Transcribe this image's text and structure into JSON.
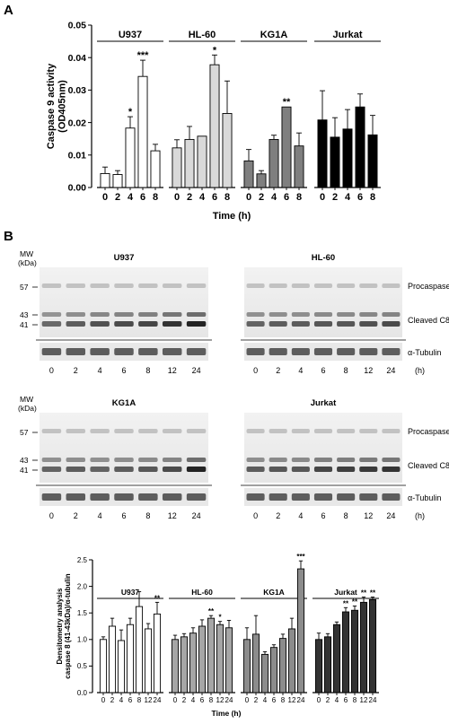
{
  "panel_letters": {
    "a": "A",
    "b": "B"
  },
  "blot": {
    "mw_label": "MW",
    "kda_label": "(kDa)",
    "markers": [
      "57",
      "43",
      "41"
    ],
    "band_labels": [
      "Procaspase",
      "Cleaved C8",
      "α-Tubulin"
    ],
    "hours_unit": "(h)",
    "panels": [
      {
        "name": "U937",
        "lanes": [
          "0",
          "2",
          "4",
          "6",
          "8",
          "12",
          "24"
        ]
      },
      {
        "name": "HL-60",
        "lanes": [
          "0",
          "2",
          "4",
          "6",
          "8",
          "12",
          "24"
        ]
      },
      {
        "name": "KG1A",
        "lanes": [
          "0",
          "2",
          "4",
          "6",
          "8",
          "12",
          "24"
        ]
      },
      {
        "name": "Jurkat",
        "lanes": [
          "0",
          "2",
          "4",
          "6",
          "8",
          "12",
          "24"
        ]
      }
    ]
  },
  "chart_data": [
    {
      "type": "bar",
      "xlabel": "Time (h)",
      "ylabel": "Caspase 9 activity (OD405nm)",
      "ylabel_lines": [
        "Caspase 9 activity",
        "(OD405nm)"
      ],
      "ylim": [
        0,
        0.05
      ],
      "yticks": [
        "0.00",
        "0.01",
        "0.02",
        "0.03",
        "0.04",
        "0.05"
      ],
      "ytick_values": [
        0,
        0.01,
        0.02,
        0.03,
        0.04,
        0.05
      ],
      "groups": [
        {
          "name": "U937",
          "color": "#ffffff",
          "categories": [
            "0",
            "2",
            "4",
            "6",
            "8"
          ],
          "values": [
            0.0043,
            0.004,
            0.0183,
            0.0342,
            0.0113
          ],
          "errors": [
            0.002,
            0.0012,
            0.0035,
            0.005,
            0.002
          ],
          "sig": [
            "",
            "",
            "*",
            "***",
            ""
          ]
        },
        {
          "name": "HL-60",
          "color": "#d9d9d9",
          "categories": [
            "0",
            "2",
            "4",
            "6",
            "8"
          ],
          "values": [
            0.0122,
            0.0148,
            0.0158,
            0.0378,
            0.0228
          ],
          "errors": [
            0.0025,
            0.004,
            0.0,
            0.003,
            0.01
          ],
          "sig": [
            "",
            "",
            "",
            "*",
            ""
          ]
        },
        {
          "name": "KG1A",
          "color": "#7f7f7f",
          "categories": [
            "0",
            "2",
            "4",
            "6",
            "8"
          ],
          "values": [
            0.0082,
            0.0042,
            0.0148,
            0.0248,
            0.0128
          ],
          "errors": [
            0.0035,
            0.001,
            0.0013,
            0.0,
            0.004
          ],
          "sig": [
            "",
            "",
            "",
            "**",
            ""
          ]
        },
        {
          "name": "Jurkat",
          "color": "#000000",
          "categories": [
            "0",
            "2",
            "4",
            "6",
            "8"
          ],
          "values": [
            0.0208,
            0.0155,
            0.018,
            0.0248,
            0.0162
          ],
          "errors": [
            0.009,
            0.006,
            0.006,
            0.004,
            0.006
          ],
          "sig": [
            "",
            "",
            "",
            "",
            ""
          ]
        }
      ]
    },
    {
      "type": "bar",
      "xlabel": "Time (h)",
      "ylabel": "Densitometry analysis caspase 8 (41-43kDa)/α-tubulin",
      "ylabel_lines": [
        "Densitometry analysis",
        "caspase 8 (41-43kDa)/α-tubulin"
      ],
      "ylim": [
        0,
        2.5
      ],
      "yticks": [
        "0.0",
        "0.5",
        "1.0",
        "1.5",
        "2.0",
        "2.5"
      ],
      "ytick_values": [
        0,
        0.5,
        1.0,
        1.5,
        2.0,
        2.5
      ],
      "groups": [
        {
          "name": "U937",
          "color": "#ffffff",
          "categories": [
            "0",
            "2",
            "4",
            "6",
            "8",
            "12",
            "24"
          ],
          "values": [
            1.0,
            1.25,
            0.98,
            1.28,
            1.62,
            1.2,
            1.48
          ],
          "errors": [
            0.05,
            0.15,
            0.2,
            0.12,
            0.28,
            0.1,
            0.22
          ],
          "sig": [
            "",
            "",
            "",
            "",
            "",
            "",
            "**"
          ]
        },
        {
          "name": "HL-60",
          "color": "#a6a6a6",
          "categories": [
            "0",
            "2",
            "4",
            "6",
            "8",
            "12",
            "24"
          ],
          "values": [
            1.0,
            1.05,
            1.12,
            1.25,
            1.4,
            1.28,
            1.22
          ],
          "errors": [
            0.08,
            0.06,
            0.1,
            0.12,
            0.05,
            0.06,
            0.14
          ],
          "sig": [
            "",
            "",
            "",
            "",
            "**",
            "*",
            ""
          ]
        },
        {
          "name": "KG1A",
          "color": "#8c8c8c",
          "categories": [
            "0",
            "2",
            "4",
            "6",
            "8",
            "12",
            "24"
          ],
          "values": [
            1.0,
            1.1,
            0.72,
            0.85,
            1.02,
            1.2,
            2.33
          ],
          "errors": [
            0.22,
            0.35,
            0.05,
            0.05,
            0.08,
            0.2,
            0.15
          ],
          "sig": [
            "",
            "",
            "",
            "",
            "",
            "",
            "***"
          ]
        },
        {
          "name": "Jurkat",
          "color": "#333333",
          "categories": [
            "0",
            "2",
            "4",
            "6",
            "8",
            "12",
            "24"
          ],
          "values": [
            1.0,
            1.05,
            1.28,
            1.52,
            1.55,
            1.7,
            1.75
          ],
          "errors": [
            0.12,
            0.06,
            0.05,
            0.08,
            0.08,
            0.1,
            0.05
          ],
          "sig": [
            "",
            "",
            "",
            "**",
            "**",
            "**",
            "**"
          ]
        }
      ]
    }
  ]
}
